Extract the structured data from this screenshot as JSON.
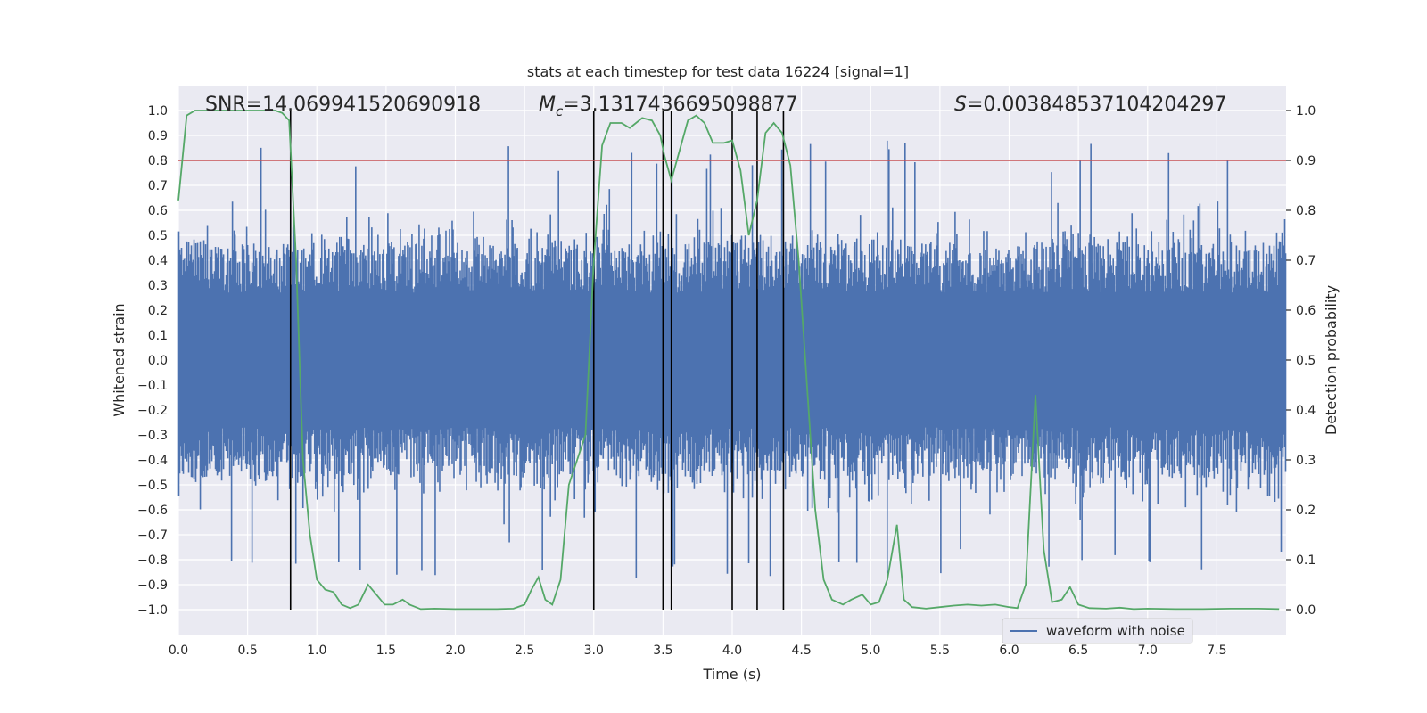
{
  "chart_data": {
    "type": "line",
    "title": "stats at each timestep for test data 16224 [signal=1]",
    "xlabel": "Time (s)",
    "ylabel_left": "Whitened strain",
    "ylabel_right": "Detection probability",
    "xlim": [
      0.0,
      8.0
    ],
    "ylim_left": [
      -1.1,
      1.1
    ],
    "ylim_right": [
      -0.05,
      1.05
    ],
    "xticks": [
      0.0,
      0.5,
      1.0,
      1.5,
      2.0,
      2.5,
      3.0,
      3.5,
      4.0,
      4.5,
      5.0,
      5.5,
      6.0,
      6.5,
      7.0,
      7.5
    ],
    "xtick_labels": [
      "0.0",
      "0.5",
      "1.0",
      "1.5",
      "2.0",
      "2.5",
      "3.0",
      "3.5",
      "4.0",
      "4.5",
      "5.0",
      "5.5",
      "6.0",
      "6.5",
      "7.0",
      "7.5"
    ],
    "yticks_left": [
      1.0,
      0.9,
      0.8,
      0.7,
      0.6,
      0.5,
      0.4,
      0.3,
      0.2,
      0.1,
      0.0,
      -0.1,
      -0.2,
      -0.3,
      -0.4,
      -0.5,
      -0.6,
      -0.7,
      -0.8,
      -0.9,
      -1.0
    ],
    "ytick_labels_left": [
      "1.0",
      "0.9",
      "0.8",
      "0.7",
      "0.6",
      "0.5",
      "0.4",
      "0.3",
      "0.2",
      "0.1",
      "0.0",
      "−0.1",
      "−0.2",
      "−0.3",
      "−0.4",
      "−0.5",
      "−0.6",
      "−0.7",
      "−0.8",
      "−0.9",
      "−1.0"
    ],
    "yticks_right": [
      1.0,
      0.9,
      0.8,
      0.7,
      0.6,
      0.5,
      0.4,
      0.3,
      0.2,
      0.1,
      0.0
    ],
    "ytick_labels_right": [
      "1.0",
      "0.9",
      "0.8",
      "0.7",
      "0.6",
      "0.5",
      "0.4",
      "0.3",
      "0.2",
      "0.1",
      "0.0"
    ],
    "threshold_right": 0.9,
    "vertical_lines_x": [
      0.81,
      3.0,
      3.5,
      3.56,
      4.0,
      4.18,
      4.37
    ],
    "vertical_lines_y_range": [
      -1.0,
      1.0
    ],
    "annotations": {
      "snr_label": "SNR=14.069941520690918",
      "mc_symbol": "M",
      "mc_subscript": "c",
      "mc_value": "=3.1317436695098877",
      "s_symbol": "S",
      "s_value": "=0.003848537104204297"
    },
    "legend": {
      "entries": [
        "waveform with noise"
      ],
      "position": "lower-right"
    },
    "series": [
      {
        "name": "waveform with noise",
        "axis": "left",
        "color": "#4c72b0",
        "description": "dense noise trace sampled at fine time steps; typical envelope ±0.45, peak excursions ~±0.88",
        "envelope_core": 0.45,
        "peak_excursion": 0.88
      },
      {
        "name": "detection probability",
        "axis": "right",
        "color": "#55a868",
        "x": [
          0.0,
          0.06,
          0.12,
          0.18,
          0.25,
          0.3,
          0.4,
          0.5,
          0.6,
          0.7,
          0.75,
          0.8,
          0.85,
          0.9,
          0.95,
          1.0,
          1.06,
          1.12,
          1.18,
          1.24,
          1.3,
          1.37,
          1.43,
          1.49,
          1.55,
          1.62,
          1.67,
          1.75,
          1.85,
          2.0,
          2.15,
          2.3,
          2.42,
          2.5,
          2.55,
          2.6,
          2.65,
          2.7,
          2.76,
          2.82,
          2.88,
          2.94,
          3.0,
          3.06,
          3.12,
          3.2,
          3.26,
          3.35,
          3.42,
          3.48,
          3.51,
          3.56,
          3.62,
          3.68,
          3.74,
          3.8,
          3.86,
          3.94,
          4.0,
          4.06,
          4.12,
          4.18,
          4.24,
          4.3,
          4.36,
          4.42,
          4.48,
          4.54,
          4.6,
          4.66,
          4.72,
          4.8,
          4.86,
          4.94,
          5.0,
          5.06,
          5.12,
          5.19,
          5.24,
          5.3,
          5.4,
          5.5,
          5.6,
          5.7,
          5.8,
          5.9,
          6.0,
          6.06,
          6.12,
          6.19,
          6.25,
          6.31,
          6.38,
          6.44,
          6.5,
          6.58,
          6.7,
          6.8,
          6.9,
          7.0,
          7.2,
          7.4,
          7.6,
          7.8,
          7.95
        ],
        "values": [
          0.82,
          0.99,
          1.0,
          1.0,
          1.0,
          1.0,
          1.0,
          1.0,
          1.0,
          1.0,
          0.995,
          0.98,
          0.7,
          0.3,
          0.15,
          0.06,
          0.04,
          0.035,
          0.01,
          0.003,
          0.01,
          0.05,
          0.03,
          0.01,
          0.01,
          0.02,
          0.01,
          0.001,
          0.002,
          0.001,
          0.001,
          0.001,
          0.002,
          0.01,
          0.04,
          0.065,
          0.02,
          0.01,
          0.06,
          0.25,
          0.3,
          0.35,
          0.7,
          0.93,
          0.975,
          0.975,
          0.965,
          0.985,
          0.98,
          0.95,
          0.91,
          0.86,
          0.92,
          0.98,
          0.99,
          0.975,
          0.935,
          0.935,
          0.94,
          0.88,
          0.75,
          0.82,
          0.955,
          0.975,
          0.955,
          0.89,
          0.7,
          0.45,
          0.2,
          0.06,
          0.02,
          0.01,
          0.02,
          0.03,
          0.01,
          0.015,
          0.06,
          0.17,
          0.02,
          0.005,
          0.002,
          0.005,
          0.008,
          0.01,
          0.008,
          0.01,
          0.005,
          0.003,
          0.05,
          0.43,
          0.12,
          0.015,
          0.02,
          0.045,
          0.01,
          0.003,
          0.002,
          0.004,
          0.001,
          0.002,
          0.001,
          0.001,
          0.002,
          0.002,
          0.001
        ]
      }
    ]
  }
}
